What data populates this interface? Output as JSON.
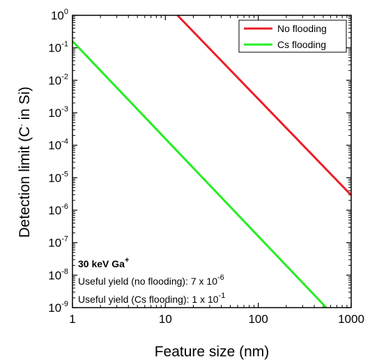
{
  "chart_data": {
    "type": "line",
    "x_scale": "log",
    "y_scale": "log",
    "xlim": [
      1,
      1000
    ],
    "ylim": [
      1e-09,
      1
    ],
    "xlabel": "Feature size (nm)",
    "ylabel": {
      "prefix": "Detection limit (C",
      "sup": "-",
      "suffix": " in Si)"
    },
    "x_ticks": [
      {
        "value": 1,
        "label": "1"
      },
      {
        "value": 10,
        "label": "10"
      },
      {
        "value": 100,
        "label": "100"
      },
      {
        "value": 1000,
        "label": "1000"
      }
    ],
    "y_ticks": [
      {
        "value": 1,
        "base": "10",
        "exp": "0"
      },
      {
        "value": 0.1,
        "base": "10",
        "exp": "-1"
      },
      {
        "value": 0.01,
        "base": "10",
        "exp": "-2"
      },
      {
        "value": 0.001,
        "base": "10",
        "exp": "-3"
      },
      {
        "value": 0.0001,
        "base": "10",
        "exp": "-4"
      },
      {
        "value": 1e-05,
        "base": "10",
        "exp": "-5"
      },
      {
        "value": 1e-06,
        "base": "10",
        "exp": "-6"
      },
      {
        "value": 1e-07,
        "base": "10",
        "exp": "-7"
      },
      {
        "value": 1e-08,
        "base": "10",
        "exp": "-8"
      },
      {
        "value": 1e-09,
        "base": "10",
        "exp": "-9"
      }
    ],
    "series": [
      {
        "name": "No flooding",
        "color": "#ee1c25",
        "x": [
          13.5,
          1000
        ],
        "y": [
          1,
          2.9e-06
        ]
      },
      {
        "name": "Cs flooding",
        "color": "#22ee22",
        "x": [
          1,
          540
        ],
        "y": [
          0.16,
          1e-09
        ]
      }
    ],
    "legend_position": "top-right",
    "annotation": {
      "title": {
        "text": "30 keV Ga",
        "sup": "+"
      },
      "lines": [
        {
          "text": "Useful yield (no flooding): 7 x 10",
          "sup": "-6"
        },
        {
          "text": "Useful yield (Cs flooding): 1 x 10",
          "sup": "-1"
        }
      ]
    }
  }
}
